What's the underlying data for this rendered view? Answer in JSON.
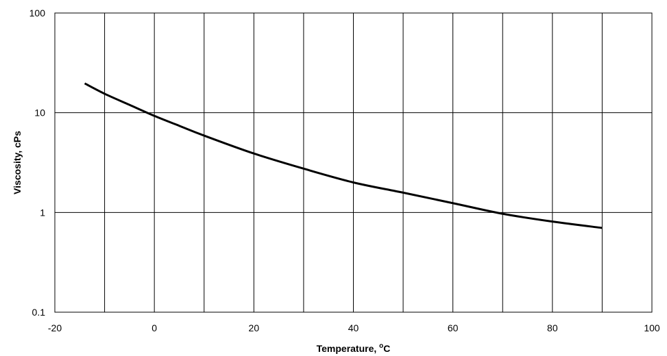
{
  "chart_data": {
    "type": "line",
    "title": "",
    "xlabel": "Temperature, ",
    "xlabel_sup": "o",
    "xlabel_unit": "C",
    "ylabel": "Viscosity, cPs",
    "xlim": [
      -20,
      100
    ],
    "ylim": [
      0.1,
      100
    ],
    "yscale": "log",
    "grid": true,
    "legend": "none",
    "x_ticks": [
      -20,
      0,
      20,
      40,
      60,
      80,
      100
    ],
    "y_ticks": [
      0.1,
      1,
      10,
      100
    ],
    "x_tick_labels": [
      "-20",
      "0",
      "20",
      "40",
      "60",
      "80",
      "100"
    ],
    "y_tick_labels": [
      "0.1",
      "1",
      "10",
      "100"
    ],
    "series": [
      {
        "color": "#000000",
        "x": [
          -14,
          -10,
          -5,
          0,
          5,
          10,
          20,
          30,
          40,
          50,
          60,
          70,
          80,
          90
        ],
        "y": [
          19.7,
          15.5,
          12.0,
          9.3,
          7.4,
          5.9,
          3.9,
          2.75,
          2.0,
          1.58,
          1.24,
          0.97,
          0.81,
          0.7
        ]
      }
    ]
  }
}
